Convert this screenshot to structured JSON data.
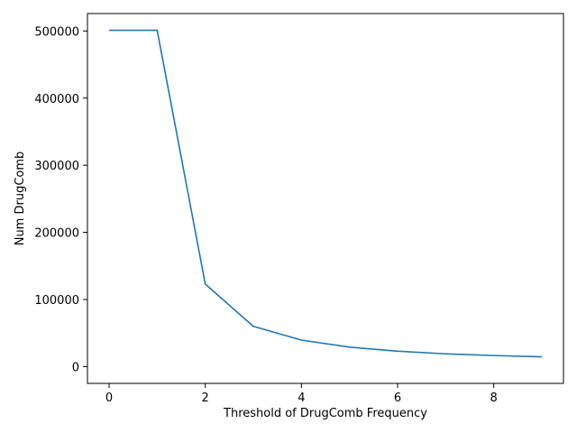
{
  "chart_data": {
    "type": "line",
    "title": "",
    "xlabel": "Threshold of DrugComb Frequency",
    "ylabel": "Num DrugComb",
    "xlim": [
      -0.45,
      9.45
    ],
    "ylim": [
      -25000,
      526000
    ],
    "xticks": [
      0,
      2,
      4,
      6,
      8
    ],
    "yticks": [
      0,
      100000,
      200000,
      300000,
      400000,
      500000
    ],
    "grid": false,
    "legend": "none",
    "series": [
      {
        "color": "#1f77b4",
        "x": [
          0,
          1,
          2,
          3,
          4,
          5,
          6,
          7,
          8,
          9
        ],
        "y": [
          501000,
          501000,
          123000,
          60000,
          39500,
          29000,
          23000,
          19000,
          16500,
          14500
        ]
      }
    ]
  }
}
